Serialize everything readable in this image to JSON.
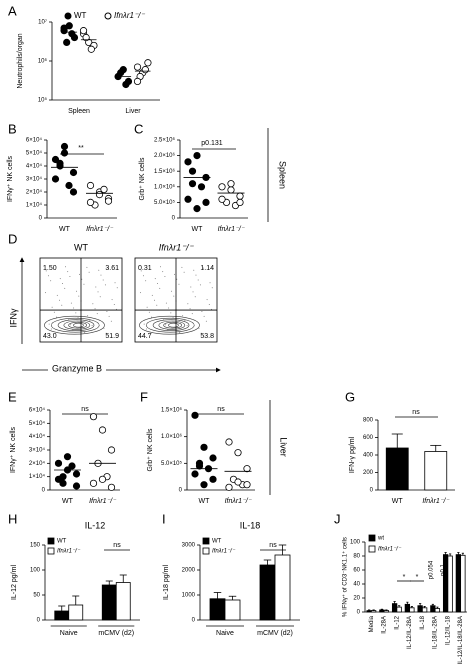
{
  "chart_data": [
    {
      "panel": "A",
      "type": "dot",
      "ylabel": "Neutrophils/organ",
      "log": true,
      "categories": [
        "Spleen",
        "Liver"
      ],
      "ylim": [
        100000,
        10000000
      ],
      "yticks": [
        {
          "value": 100000,
          "label": "10⁵"
        },
        {
          "value": 1000000,
          "label": "10⁶"
        },
        {
          "value": 10000000,
          "label": "10⁷"
        }
      ],
      "series": [
        {
          "name": "WT",
          "fill": "#000000",
          "values": [
            [
              6000000,
              8000000,
              4000000,
              3000000,
              5000000,
              7000000
            ],
            [
              400000,
              600000,
              300000,
              500000,
              250000
            ]
          ],
          "means": [
            5500000,
            400000
          ]
        },
        {
          "name": "Ifnλr1⁻/⁻",
          "fill": "#ffffff",
          "values": [
            [
              5000000,
              3000000,
              2500000,
              4000000,
              2000000,
              6000000
            ],
            [
              700000,
              500000,
              900000,
              400000,
              600000,
              300000
            ]
          ],
          "means": [
            3500000,
            550000
          ]
        }
      ]
    },
    {
      "panel": "B",
      "type": "dot",
      "ylabel": "IFNγ⁺ NK cells",
      "categories": [
        "WT",
        "Ifnλr1⁻/⁻"
      ],
      "fills": [
        "#000000",
        "#ffffff"
      ],
      "ylim": [
        0,
        60000
      ],
      "yticks": [
        {
          "value": 0,
          "label": "0"
        },
        {
          "value": 10000,
          "label": "1×10⁴"
        },
        {
          "value": 20000,
          "label": "2×10⁴"
        },
        {
          "value": 30000,
          "label": "3×10⁴"
        },
        {
          "value": 40000,
          "label": "4×10⁴"
        },
        {
          "value": 50000,
          "label": "5×10⁴"
        },
        {
          "value": 60000,
          "label": "6×10⁴"
        }
      ],
      "values": [
        [
          45000,
          50000,
          35000,
          40000,
          25000,
          30000,
          55000,
          20000,
          42000
        ],
        [
          25000,
          20000,
          15000,
          10000,
          22000,
          12000,
          18000,
          13000
        ]
      ],
      "means": [
        39000,
        19000
      ],
      "annotations": [
        "**"
      ]
    },
    {
      "panel": "C",
      "type": "dot",
      "ylabel": "Grb⁺ NK cells",
      "categories": [
        "WT",
        "Ifnλr1⁻/⁻"
      ],
      "fills": [
        "#000000",
        "#ffffff"
      ],
      "ylim": [
        0,
        2500000
      ],
      "yticks": [
        {
          "value": 0,
          "label": "0"
        },
        {
          "value": 500000,
          "label": "5.0×10⁵"
        },
        {
          "value": 1000000,
          "label": "1.0×10⁶"
        },
        {
          "value": 1500000,
          "label": "1.5×10⁶"
        },
        {
          "value": 2000000,
          "label": "2.0×10⁶"
        },
        {
          "value": 2500000,
          "label": "2.5×10⁶"
        }
      ],
      "values": [
        [
          1800000,
          2000000,
          1300000,
          1100000,
          1000000,
          600000,
          300000,
          500000,
          1500000
        ],
        [
          1000000,
          900000,
          700000,
          500000,
          400000,
          600000,
          1100000,
          500000
        ]
      ],
      "means": [
        1300000,
        800000
      ],
      "annotations": [
        "p0.131"
      ]
    },
    {
      "panel": "D",
      "type": "flow",
      "ylabel": "IFNγ",
      "xlabel": "Granzyme B",
      "plots": [
        {
          "title": "WT",
          "quadrants": [
            "1.50",
            "3.61",
            "43.0",
            "51.9"
          ]
        },
        {
          "title": "Ifnλr1⁻/⁻",
          "quadrants": [
            "0.31",
            "1.14",
            "44.7",
            "53.8"
          ]
        }
      ]
    },
    {
      "panel": "E",
      "type": "dot",
      "ylabel": "IFNγ⁺ NK cells",
      "categories": [
        "WT",
        "Ifnλr1⁻/⁻"
      ],
      "fills": [
        "#000000",
        "#ffffff"
      ],
      "ylim": [
        0,
        60000
      ],
      "yticks": [
        {
          "value": 0,
          "label": "0"
        },
        {
          "value": 10000,
          "label": "1×10⁴"
        },
        {
          "value": 20000,
          "label": "2×10⁴"
        },
        {
          "value": 30000,
          "label": "3×10⁴"
        },
        {
          "value": 40000,
          "label": "4×10⁴"
        },
        {
          "value": 50000,
          "label": "5×10⁴"
        },
        {
          "value": 60000,
          "label": "6×10⁴"
        }
      ],
      "values": [
        [
          20000,
          15000,
          12000,
          5000,
          18000,
          8000,
          25000,
          3000,
          10000
        ],
        [
          55000,
          45000,
          30000,
          20000,
          10000,
          5000,
          8000,
          2000
        ]
      ],
      "means": [
        15000,
        20000
      ],
      "annotations": [
        "ns"
      ]
    },
    {
      "panel": "F",
      "type": "dot",
      "ylabel": "Grb⁺ NK cells",
      "categories": [
        "WT",
        "Ifnλr1⁻/⁻"
      ],
      "fills": [
        "#000000",
        "#ffffff"
      ],
      "ylim": [
        0,
        1500000
      ],
      "yticks": [
        {
          "value": 0,
          "label": "0"
        },
        {
          "value": 500000,
          "label": "5.0×10⁵"
        },
        {
          "value": 1000000,
          "label": "1.0×10⁶"
        },
        {
          "value": 1500000,
          "label": "1.5×10⁶"
        }
      ],
      "values": [
        [
          1400000,
          800000,
          600000,
          500000,
          400000,
          300000,
          100000,
          200000,
          450000
        ],
        [
          900000,
          700000,
          400000,
          200000,
          100000,
          50000,
          150000,
          100000
        ]
      ],
      "means": [
        400000,
        350000
      ],
      "annotations": [
        "ns"
      ]
    },
    {
      "panel": "G",
      "type": "bar",
      "ylabel": "IFN-γ pg/ml",
      "categories": [
        "WT",
        "Ifnλr1⁻/⁻"
      ],
      "fills": [
        "#000000",
        "#ffffff"
      ],
      "ylim": [
        0,
        800
      ],
      "yticks": [
        0,
        200,
        400,
        600,
        800
      ],
      "values": [
        480,
        440
      ],
      "errors": [
        160,
        70
      ],
      "annotations": [
        "ns"
      ]
    },
    {
      "panel": "H",
      "type": "bar",
      "title": "IL-12",
      "ylabel": "IL-12 pg/ml",
      "categories": [
        "Naive",
        "mCMV (d2)"
      ],
      "ylim": [
        0,
        150
      ],
      "yticks": [
        0,
        50,
        100,
        150
      ],
      "series": [
        {
          "name": "WT",
          "fill": "#000000",
          "values": [
            18,
            70
          ],
          "errors": [
            10,
            8
          ]
        },
        {
          "name": "Ifnλr1⁻/⁻",
          "fill": "#ffffff",
          "values": [
            30,
            75
          ],
          "errors": [
            18,
            15
          ]
        }
      ],
      "annotations": [
        "ns"
      ]
    },
    {
      "panel": "I",
      "type": "bar",
      "title": "IL-18",
      "ylabel": "IL-18 pg/ml",
      "categories": [
        "Naive",
        "mCMV (d2)"
      ],
      "ylim": [
        0,
        3000
      ],
      "yticks": [
        0,
        1000,
        2000,
        3000
      ],
      "series": [
        {
          "name": "WT",
          "fill": "#000000",
          "values": [
            850,
            2200
          ],
          "errors": [
            250,
            200
          ]
        },
        {
          "name": "Ifnλr1⁻/⁻",
          "fill": "#ffffff",
          "values": [
            800,
            2600
          ],
          "errors": [
            150,
            400
          ]
        }
      ],
      "annotations": [
        "ns"
      ]
    },
    {
      "panel": "J",
      "type": "bar",
      "ylabel": "% IFNγ⁺ of CD3⁻NK1.1⁺ cells",
      "categories": [
        "Media",
        "IL-28A",
        "IL-12",
        "IL-12/IL-28A",
        "IL-18",
        "IL-18/IL-28A",
        "IL-12/IL-18",
        "IL-12/IL-18/IL-28A"
      ],
      "ylim": [
        0,
        100
      ],
      "yticks": [
        0,
        20,
        40,
        60,
        80,
        100
      ],
      "series": [
        {
          "name": "wt",
          "fill": "#000000",
          "values": [
            2,
            3,
            12,
            11,
            9,
            9,
            82,
            82
          ],
          "errors": [
            1,
            1,
            3,
            3,
            3,
            2,
            3,
            3
          ]
        },
        {
          "name": "Ifnλr1⁻/⁻",
          "fill": "#ffffff",
          "values": [
            2,
            2,
            7,
            6,
            6,
            5,
            80,
            81
          ],
          "errors": [
            1,
            1,
            2,
            2,
            2,
            2,
            3,
            3
          ]
        }
      ],
      "annotations": [
        "*",
        "*",
        "p0.054",
        "p0.1"
      ]
    }
  ],
  "figure": {
    "side_labels": [
      "Spleen",
      "Liver"
    ]
  }
}
